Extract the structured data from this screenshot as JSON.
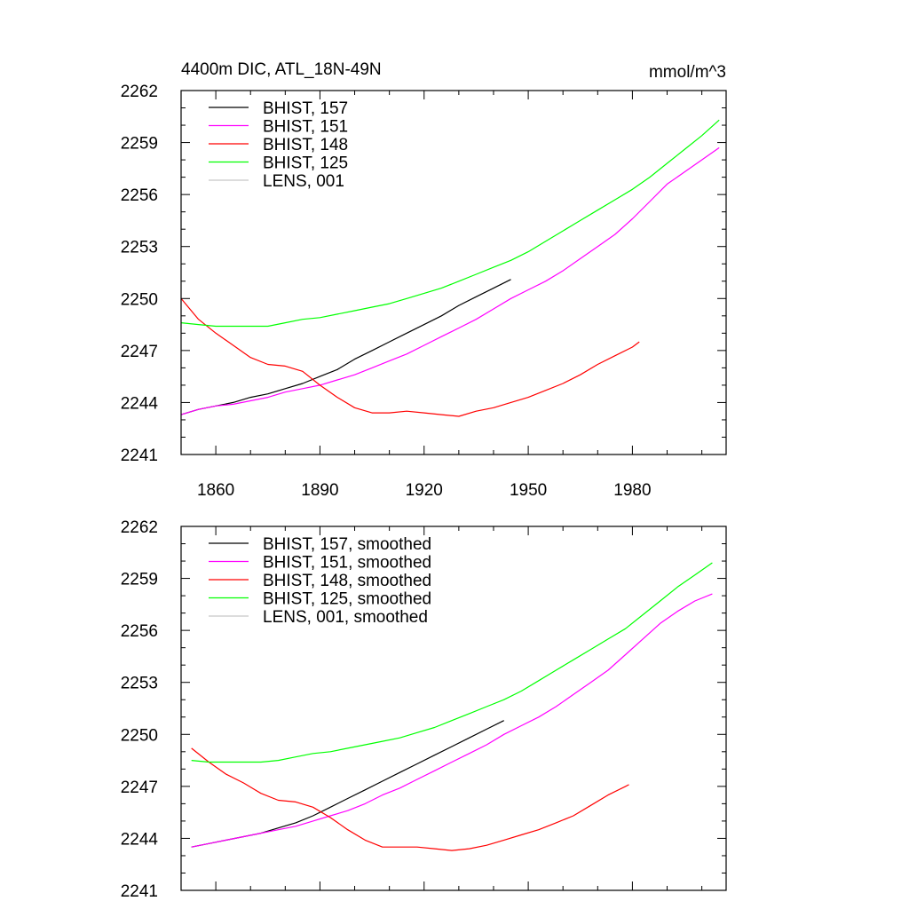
{
  "chart_data": [
    {
      "type": "line",
      "title": "4400m DIC, ATL_18N-49N",
      "units": "mmol/m^3",
      "xlim": [
        1850,
        2007
      ],
      "ylim": [
        2241,
        2262
      ],
      "yticks": [
        2241,
        2244,
        2247,
        2250,
        2253,
        2256,
        2259,
        2262
      ],
      "xticks": [
        1860,
        1890,
        1920,
        1950,
        1980
      ],
      "xticks_labeled": true,
      "legend_position": "top-left",
      "series": [
        {
          "name": "BHIST, 157",
          "color": "#000000",
          "x": [
            1850,
            1855,
            1860,
            1865,
            1870,
            1875,
            1880,
            1885,
            1890,
            1895,
            1900,
            1905,
            1910,
            1915,
            1920,
            1925,
            1930,
            1935,
            1940,
            1945
          ],
          "y": [
            2243.3,
            2243.6,
            2243.8,
            2244.0,
            2244.3,
            2244.5,
            2244.8,
            2245.1,
            2245.5,
            2245.9,
            2246.5,
            2247.0,
            2247.5,
            2248.0,
            2248.5,
            2249.0,
            2249.6,
            2250.1,
            2250.6,
            2251.1
          ]
        },
        {
          "name": "BHIST, 151",
          "color": "#ff00ff",
          "x": [
            1850,
            1855,
            1860,
            1865,
            1870,
            1875,
            1880,
            1885,
            1890,
            1895,
            1900,
            1905,
            1910,
            1915,
            1920,
            1925,
            1930,
            1935,
            1940,
            1945,
            1950,
            1955,
            1960,
            1965,
            1970,
            1975,
            1980,
            1985,
            1990,
            1995,
            2000,
            2005
          ],
          "y": [
            2243.3,
            2243.6,
            2243.8,
            2243.9,
            2244.1,
            2244.3,
            2244.6,
            2244.8,
            2245.0,
            2245.3,
            2245.6,
            2246.0,
            2246.4,
            2246.8,
            2247.3,
            2247.8,
            2248.3,
            2248.8,
            2249.4,
            2250.0,
            2250.5,
            2251.0,
            2251.6,
            2252.3,
            2253.0,
            2253.7,
            2254.6,
            2255.6,
            2256.6,
            2257.3,
            2258.0,
            2258.7
          ]
        },
        {
          "name": "BHIST, 148",
          "color": "#ff0000",
          "x": [
            1850,
            1855,
            1860,
            1865,
            1870,
            1875,
            1880,
            1885,
            1890,
            1895,
            1900,
            1905,
            1910,
            1915,
            1920,
            1925,
            1930,
            1935,
            1940,
            1945,
            1950,
            1955,
            1960,
            1965,
            1970,
            1975,
            1980,
            1982
          ],
          "y": [
            2250.0,
            2248.8,
            2248.0,
            2247.3,
            2246.6,
            2246.2,
            2246.1,
            2245.8,
            2245.0,
            2244.3,
            2243.7,
            2243.4,
            2243.4,
            2243.5,
            2243.4,
            2243.3,
            2243.2,
            2243.5,
            2243.7,
            2244.0,
            2244.3,
            2244.7,
            2245.1,
            2245.6,
            2246.2,
            2246.7,
            2247.2,
            2247.5
          ]
        },
        {
          "name": "BHIST, 125",
          "color": "#00ff00",
          "x": [
            1850,
            1855,
            1860,
            1865,
            1870,
            1875,
            1880,
            1885,
            1890,
            1895,
            1900,
            1905,
            1910,
            1915,
            1920,
            1925,
            1930,
            1935,
            1940,
            1945,
            1950,
            1955,
            1960,
            1965,
            1970,
            1975,
            1980,
            1985,
            1990,
            1995,
            2000,
            2005
          ],
          "y": [
            2248.6,
            2248.5,
            2248.4,
            2248.4,
            2248.4,
            2248.4,
            2248.6,
            2248.8,
            2248.9,
            2249.1,
            2249.3,
            2249.5,
            2249.7,
            2250.0,
            2250.3,
            2250.6,
            2251.0,
            2251.4,
            2251.8,
            2252.2,
            2252.7,
            2253.3,
            2253.9,
            2254.5,
            2255.1,
            2255.7,
            2256.3,
            2257.0,
            2257.8,
            2258.6,
            2259.4,
            2260.3
          ]
        },
        {
          "name": "LENS, 001",
          "color": "#c8c8c8",
          "x": [],
          "y": []
        }
      ]
    },
    {
      "type": "line",
      "title": "",
      "units": "",
      "xlim": [
        1850,
        2007
      ],
      "ylim": [
        2241,
        2262
      ],
      "yticks": [
        2241,
        2244,
        2247,
        2250,
        2253,
        2256,
        2259,
        2262
      ],
      "xticks": [
        1860,
        1890,
        1920,
        1950,
        1980
      ],
      "xticks_labeled": false,
      "legend_position": "top-left",
      "series": [
        {
          "name": "BHIST, 157, smoothed",
          "color": "#000000",
          "x": [
            1853,
            1858,
            1863,
            1868,
            1873,
            1878,
            1883,
            1888,
            1893,
            1898,
            1903,
            1908,
            1913,
            1918,
            1923,
            1928,
            1933,
            1938,
            1943
          ],
          "y": [
            2243.5,
            2243.7,
            2243.9,
            2244.1,
            2244.3,
            2244.6,
            2244.9,
            2245.3,
            2245.8,
            2246.3,
            2246.8,
            2247.3,
            2247.8,
            2248.3,
            2248.8,
            2249.3,
            2249.8,
            2250.3,
            2250.8
          ]
        },
        {
          "name": "BHIST, 151, smoothed",
          "color": "#ff00ff",
          "x": [
            1853,
            1858,
            1863,
            1868,
            1873,
            1878,
            1883,
            1888,
            1893,
            1898,
            1903,
            1908,
            1913,
            1918,
            1923,
            1928,
            1933,
            1938,
            1943,
            1948,
            1953,
            1958,
            1963,
            1968,
            1973,
            1978,
            1983,
            1988,
            1993,
            1998,
            2003
          ],
          "y": [
            2243.5,
            2243.7,
            2243.9,
            2244.1,
            2244.3,
            2244.5,
            2244.7,
            2245.0,
            2245.3,
            2245.6,
            2246.0,
            2246.5,
            2246.9,
            2247.4,
            2247.9,
            2248.4,
            2248.9,
            2249.4,
            2250.0,
            2250.5,
            2251.0,
            2251.6,
            2252.3,
            2253.0,
            2253.7,
            2254.6,
            2255.5,
            2256.4,
            2257.1,
            2257.7,
            2258.1
          ]
        },
        {
          "name": "BHIST, 148, smoothed",
          "color": "#ff0000",
          "x": [
            1853,
            1858,
            1863,
            1868,
            1873,
            1878,
            1883,
            1888,
            1893,
            1898,
            1903,
            1908,
            1913,
            1918,
            1923,
            1928,
            1933,
            1938,
            1943,
            1948,
            1953,
            1958,
            1963,
            1968,
            1973,
            1978,
            1979
          ],
          "y": [
            2249.2,
            2248.4,
            2247.7,
            2247.2,
            2246.6,
            2246.2,
            2246.1,
            2245.8,
            2245.2,
            2244.5,
            2243.9,
            2243.5,
            2243.5,
            2243.5,
            2243.4,
            2243.3,
            2243.4,
            2243.6,
            2243.9,
            2244.2,
            2244.5,
            2244.9,
            2245.3,
            2245.9,
            2246.5,
            2247.0,
            2247.1
          ]
        },
        {
          "name": "BHIST, 125, smoothed",
          "color": "#00ff00",
          "x": [
            1853,
            1858,
            1863,
            1868,
            1873,
            1878,
            1883,
            1888,
            1893,
            1898,
            1903,
            1908,
            1913,
            1918,
            1923,
            1928,
            1933,
            1938,
            1943,
            1948,
            1953,
            1958,
            1963,
            1968,
            1973,
            1978,
            1983,
            1988,
            1993,
            1998,
            2003
          ],
          "y": [
            2248.5,
            2248.4,
            2248.4,
            2248.4,
            2248.4,
            2248.5,
            2248.7,
            2248.9,
            2249.0,
            2249.2,
            2249.4,
            2249.6,
            2249.8,
            2250.1,
            2250.4,
            2250.8,
            2251.2,
            2251.6,
            2252.0,
            2252.5,
            2253.1,
            2253.7,
            2254.3,
            2254.9,
            2255.5,
            2256.1,
            2256.9,
            2257.7,
            2258.5,
            2259.2,
            2259.9
          ]
        },
        {
          "name": "LENS, 001, smoothed",
          "color": "#c8c8c8",
          "x": [],
          "y": []
        }
      ]
    }
  ]
}
